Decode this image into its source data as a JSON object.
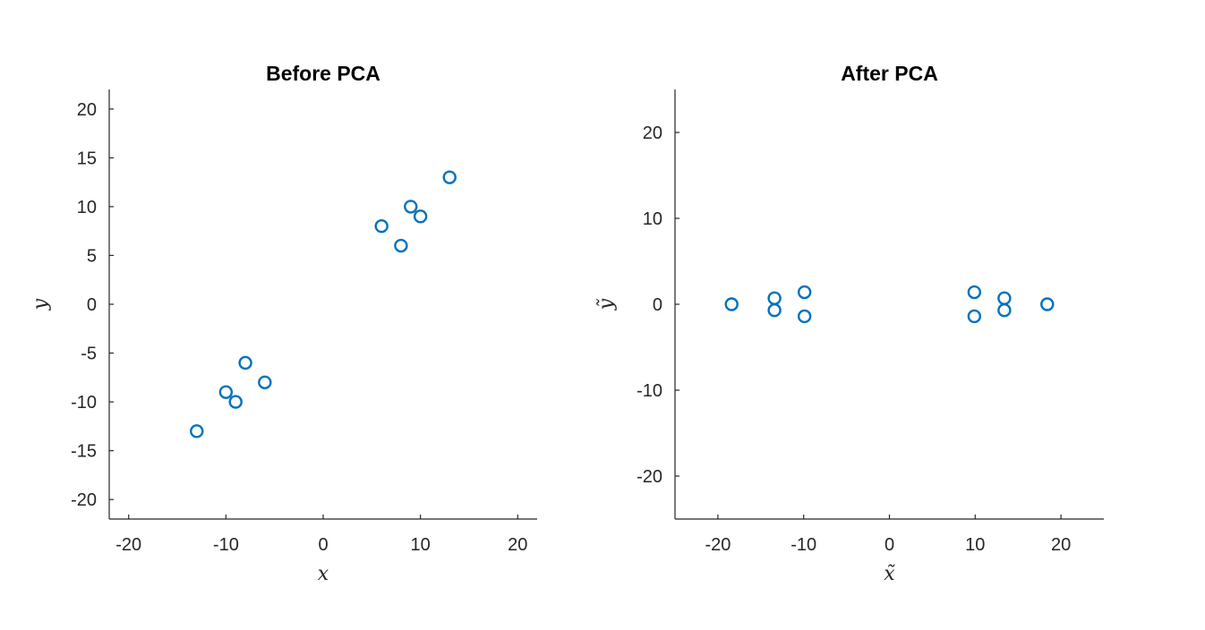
{
  "colors": {
    "marker": "#0072BD",
    "axis": "#262626"
  },
  "chart_data": [
    {
      "type": "scatter",
      "title": "Before PCA",
      "xlabel": "x",
      "ylabel": "y",
      "xlim": [
        -22,
        22
      ],
      "ylim": [
        -22,
        22
      ],
      "xticks": [
        -20,
        -10,
        0,
        10,
        20
      ],
      "yticks": [
        -20,
        -15,
        -10,
        -5,
        0,
        5,
        10,
        15,
        20
      ],
      "marker": "circle",
      "grid": false,
      "points": [
        {
          "x": -13,
          "y": -13
        },
        {
          "x": -10,
          "y": -9
        },
        {
          "x": -9,
          "y": -10
        },
        {
          "x": -8,
          "y": -6
        },
        {
          "x": -6,
          "y": -8
        },
        {
          "x": 6,
          "y": 8
        },
        {
          "x": 8,
          "y": 6
        },
        {
          "x": 9,
          "y": 10
        },
        {
          "x": 10,
          "y": 9
        },
        {
          "x": 13,
          "y": 13
        }
      ]
    },
    {
      "type": "scatter",
      "title": "After PCA",
      "xlabel": "x̃",
      "ylabel": "ỹ",
      "xlim": [
        -25,
        25
      ],
      "ylim": [
        -25,
        25
      ],
      "xticks": [
        -20,
        -10,
        0,
        10,
        20
      ],
      "yticks": [
        -20,
        -10,
        0,
        10,
        20
      ],
      "marker": "circle",
      "grid": false,
      "points": [
        {
          "x": -18.4,
          "y": 0
        },
        {
          "x": -13.4,
          "y": 0.7
        },
        {
          "x": -13.4,
          "y": -0.7
        },
        {
          "x": -9.9,
          "y": 1.4
        },
        {
          "x": -9.9,
          "y": -1.4
        },
        {
          "x": 9.9,
          "y": 1.4
        },
        {
          "x": 9.9,
          "y": -1.4
        },
        {
          "x": 13.4,
          "y": 0.7
        },
        {
          "x": 13.4,
          "y": -0.7
        },
        {
          "x": 18.4,
          "y": 0
        }
      ]
    }
  ]
}
